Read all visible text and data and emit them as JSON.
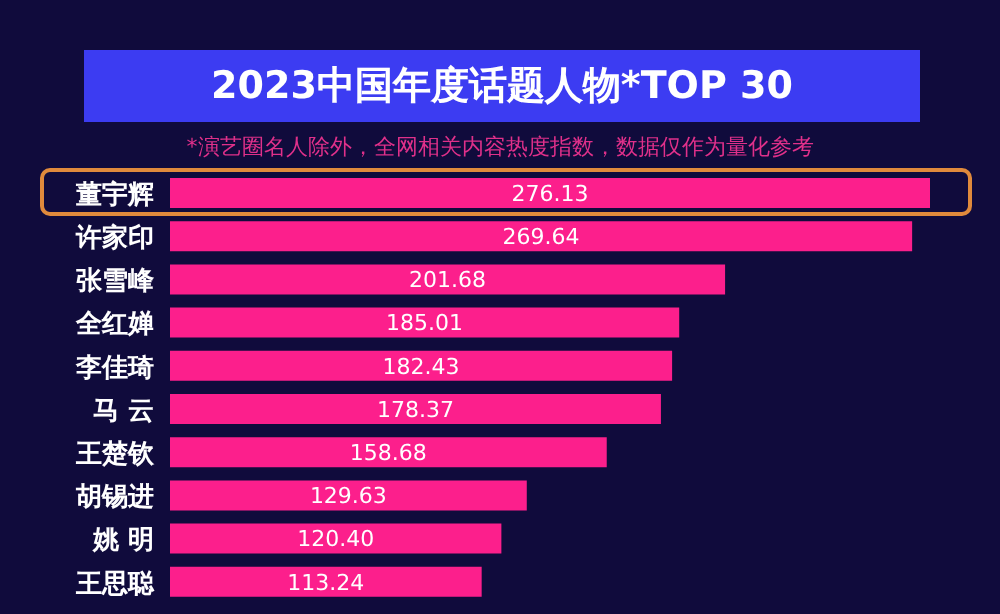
{
  "chart_data": {
    "type": "bar",
    "orientation": "horizontal",
    "title": "2023中国年度话题人物*TOP 30",
    "subtitle": "*演艺圈名人除外，全网相关内容热度指数，数据仅作为量化参考",
    "categories": [
      "董宇辉",
      "许家印",
      "张雪峰",
      "全红婵",
      "李佳琦",
      "马 云",
      "王楚钦",
      "胡锡进",
      "姚 明",
      "王思聪"
    ],
    "values": [
      276.13,
      269.64,
      201.68,
      185.01,
      182.43,
      178.37,
      158.68,
      129.63,
      120.4,
      113.24
    ],
    "value_labels": [
      "276.13",
      "269.64",
      "201.68",
      "185.01",
      "182.43",
      "178.37",
      "158.68",
      "129.63",
      "120.40",
      "113.24"
    ],
    "color": "#fc1f8c"
  }
}
